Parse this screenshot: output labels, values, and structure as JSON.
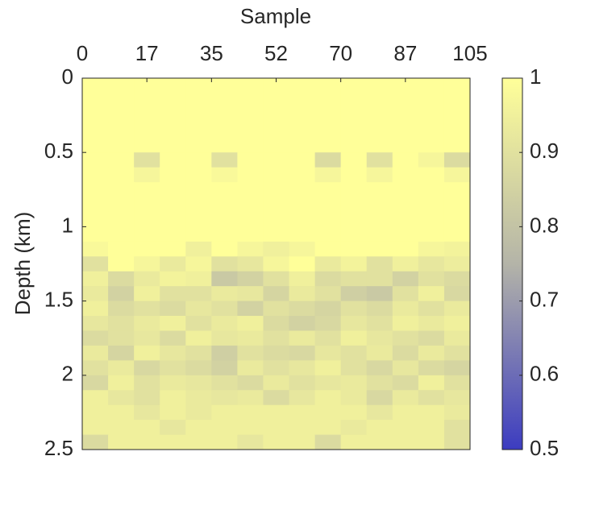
{
  "chart_data": {
    "type": "heatmap",
    "title": "Sample",
    "ylabel": "Depth (km)",
    "x_axis_position": "top",
    "y_reversed": true,
    "xlim": [
      0,
      105
    ],
    "xticks": [
      0,
      {
        "value": 17.5,
        "label": "17"
      },
      35,
      {
        "value": 52.5,
        "label": "52"
      },
      70,
      {
        "value": 87.5,
        "label": "87"
      },
      105
    ],
    "ylim": [
      0,
      2.5
    ],
    "yticks": [
      0,
      0.5,
      1,
      1.5,
      2,
      2.5
    ],
    "x": [
      3.5,
      10.5,
      17.5,
      24.5,
      31.5,
      38.5,
      45.5,
      52.5,
      59.5,
      66.5,
      73.5,
      80.5,
      87.5,
      94.5,
      101.5
    ],
    "y": [
      0.05,
      0.15,
      0.25,
      0.35,
      0.45,
      0.55,
      0.65,
      0.75,
      0.85,
      0.95,
      1.05,
      1.15,
      1.25,
      1.35,
      1.45,
      1.55,
      1.65,
      1.75,
      1.85,
      1.95,
      2.05,
      2.15,
      2.25,
      2.35,
      2.45
    ],
    "z": [
      [
        1,
        1,
        1,
        1,
        1,
        1,
        1,
        1,
        1,
        1,
        1,
        1,
        1,
        1,
        1
      ],
      [
        1,
        1,
        1,
        1,
        1,
        1,
        1,
        1,
        1,
        1,
        1,
        1,
        1,
        1,
        1
      ],
      [
        1,
        1,
        1,
        1,
        1,
        1,
        1,
        1,
        1,
        1,
        1,
        1,
        1,
        1,
        1
      ],
      [
        1,
        1,
        1,
        1,
        1,
        1,
        1,
        1,
        1,
        1,
        1,
        1,
        1,
        1,
        1
      ],
      [
        1,
        1,
        1,
        1,
        1,
        1,
        1,
        1,
        1,
        1,
        1,
        1,
        1,
        1,
        1
      ],
      [
        1,
        1,
        0.9,
        1,
        1,
        0.9,
        1,
        1,
        1,
        0.88,
        1,
        0.9,
        1,
        0.97,
        0.88
      ],
      [
        1,
        1,
        0.97,
        1,
        1,
        0.98,
        1,
        1,
        1,
        0.97,
        1,
        0.97,
        1,
        1,
        0.97
      ],
      [
        1,
        1,
        1,
        1,
        1,
        1,
        1,
        1,
        1,
        1,
        1,
        1,
        1,
        1,
        1
      ],
      [
        1,
        1,
        1,
        1,
        1,
        1,
        1,
        1,
        1,
        1,
        1,
        1,
        1,
        1,
        1
      ],
      [
        1,
        1,
        1,
        1,
        1,
        1,
        1,
        1,
        1,
        1,
        1,
        1,
        1,
        1,
        1
      ],
      [
        1,
        1,
        1,
        1,
        1,
        1,
        1,
        1,
        1,
        1,
        1,
        1,
        1,
        1,
        1
      ],
      [
        0.98,
        1,
        1,
        1,
        0.95,
        1,
        0.97,
        0.95,
        0.97,
        1,
        1,
        1,
        1,
        0.97,
        0.96
      ],
      [
        0.9,
        1,
        0.97,
        0.93,
        0.97,
        0.9,
        0.92,
        0.97,
        1,
        0.93,
        0.96,
        0.9,
        0.95,
        0.92,
        0.94
      ],
      [
        0.95,
        0.88,
        0.93,
        0.96,
        0.95,
        0.82,
        0.85,
        0.9,
        0.95,
        0.88,
        0.9,
        0.9,
        0.85,
        0.9,
        0.88
      ],
      [
        0.93,
        0.85,
        0.95,
        0.9,
        0.9,
        0.93,
        0.92,
        0.86,
        0.93,
        0.9,
        0.84,
        0.82,
        0.9,
        0.95,
        0.87
      ],
      [
        0.95,
        0.88,
        0.9,
        0.88,
        0.92,
        0.9,
        0.85,
        0.9,
        0.88,
        0.86,
        0.9,
        0.88,
        0.93,
        0.9,
        0.93
      ],
      [
        0.92,
        0.9,
        0.93,
        0.95,
        0.9,
        0.93,
        0.95,
        0.88,
        0.85,
        0.87,
        0.92,
        0.9,
        0.95,
        0.93,
        0.95
      ],
      [
        0.88,
        0.9,
        0.92,
        0.88,
        0.95,
        0.92,
        0.93,
        0.9,
        0.93,
        0.9,
        0.95,
        0.92,
        0.9,
        0.88,
        0.93
      ],
      [
        0.93,
        0.86,
        0.95,
        0.92,
        0.9,
        0.84,
        0.9,
        0.88,
        0.87,
        0.92,
        0.9,
        0.93,
        0.88,
        0.93,
        0.9
      ],
      [
        0.9,
        0.93,
        0.87,
        0.9,
        0.88,
        0.85,
        0.93,
        0.9,
        0.92,
        0.95,
        0.9,
        0.87,
        0.92,
        0.88,
        0.86
      ],
      [
        0.87,
        0.95,
        0.9,
        0.93,
        0.92,
        0.9,
        0.88,
        0.93,
        0.9,
        0.92,
        0.93,
        0.9,
        0.88,
        0.95,
        0.9
      ],
      [
        0.95,
        0.92,
        0.9,
        0.95,
        0.93,
        0.92,
        0.93,
        0.88,
        0.92,
        0.95,
        0.93,
        0.87,
        0.93,
        0.9,
        0.92
      ],
      [
        0.95,
        0.95,
        0.92,
        0.95,
        0.93,
        0.95,
        0.95,
        0.95,
        0.95,
        0.95,
        0.95,
        0.92,
        0.95,
        0.95,
        0.93
      ],
      [
        0.95,
        0.95,
        0.95,
        0.92,
        0.95,
        0.95,
        0.95,
        0.95,
        0.95,
        0.95,
        0.93,
        0.95,
        0.95,
        0.95,
        0.9
      ],
      [
        0.88,
        0.95,
        0.95,
        0.95,
        0.95,
        0.95,
        0.92,
        0.95,
        0.95,
        0.88,
        0.95,
        0.95,
        0.95,
        0.95,
        0.9
      ]
    ],
    "colormap": [
      "#3c3cc0",
      "#b4b4a8",
      "#ffff99"
    ],
    "clim": [
      0.5,
      1
    ],
    "cticks": [
      0.5,
      0.6,
      0.7,
      0.8,
      0.9,
      1
    ]
  }
}
